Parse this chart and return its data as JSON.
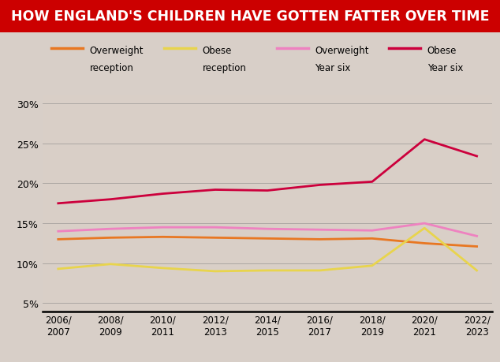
{
  "title": "HOW ENGLAND'S CHILDREN HAVE GOTTEN FATTER OVER TIME",
  "title_bg": "#cc0000",
  "title_color": "#ffffff",
  "x_labels": [
    "2006/\n2007",
    "2008/\n2009",
    "2010/\n2011",
    "2012/\n2013",
    "2014/\n2015",
    "2016/\n2017",
    "2018/\n2019",
    "2020/\n2021",
    "2022/\n2023"
  ],
  "x_values": [
    0,
    1,
    2,
    3,
    4,
    5,
    6,
    7,
    8
  ],
  "overweight_reception": [
    13.0,
    13.2,
    13.3,
    13.2,
    13.1,
    13.0,
    13.1,
    12.5,
    12.1
  ],
  "obese_reception": [
    9.3,
    9.9,
    9.4,
    9.0,
    9.1,
    9.1,
    9.7,
    14.4,
    9.1
  ],
  "overweight_year_six": [
    14.0,
    14.3,
    14.5,
    14.5,
    14.3,
    14.2,
    14.1,
    15.0,
    13.4
  ],
  "obese_year_six": [
    17.5,
    18.0,
    18.7,
    19.2,
    19.1,
    19.8,
    20.2,
    25.5,
    23.4
  ],
  "colors": {
    "overweight_reception": "#e87722",
    "obese_reception": "#e8d44d",
    "overweight_year_six": "#ee82c0",
    "obese_year_six": "#cc003c"
  },
  "bg_color": "#d8cfc8",
  "ylim": [
    4,
    31
  ],
  "yticks": [
    5,
    10,
    15,
    20,
    25,
    30
  ],
  "ytick_labels": [
    "5%",
    "10%",
    "15%",
    "20%",
    "25%",
    "30%"
  ],
  "legend_labels": [
    "Overweight\nreception",
    "Obese\nreception",
    "Overweight\nYear six",
    "Obese\nYear six"
  ],
  "line_width": 2.0
}
